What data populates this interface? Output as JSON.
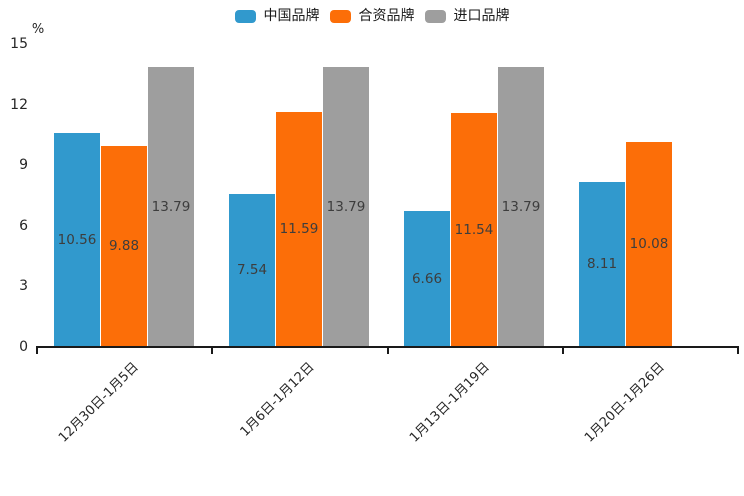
{
  "chart_data": {
    "type": "bar",
    "title": "",
    "unit_label": "%",
    "categories": [
      "12月30日-1月5日",
      "1月6日-1月12日",
      "1月13日-1月19日",
      "1月20日-1月26日"
    ],
    "series": [
      {
        "name": "中国品牌",
        "color": "#3199cd",
        "values": [
          10.56,
          7.54,
          6.66,
          8.11
        ]
      },
      {
        "name": "合资品牌",
        "color": "#fc6e08",
        "values": [
          9.88,
          11.59,
          11.54,
          10.08
        ]
      },
      {
        "name": "进口品牌",
        "color": "#9e9e9e",
        "values": [
          13.79,
          13.79,
          13.79,
          null
        ]
      }
    ],
    "y_ticks": [
      0,
      3,
      6,
      9,
      12,
      15
    ],
    "ylim": [
      0,
      15
    ],
    "grid": false,
    "legend_position": "top-center",
    "bar_value_labels_shown": true,
    "bar_label_color": "#3d3d3d",
    "axis_color": "#1a1a1a"
  }
}
